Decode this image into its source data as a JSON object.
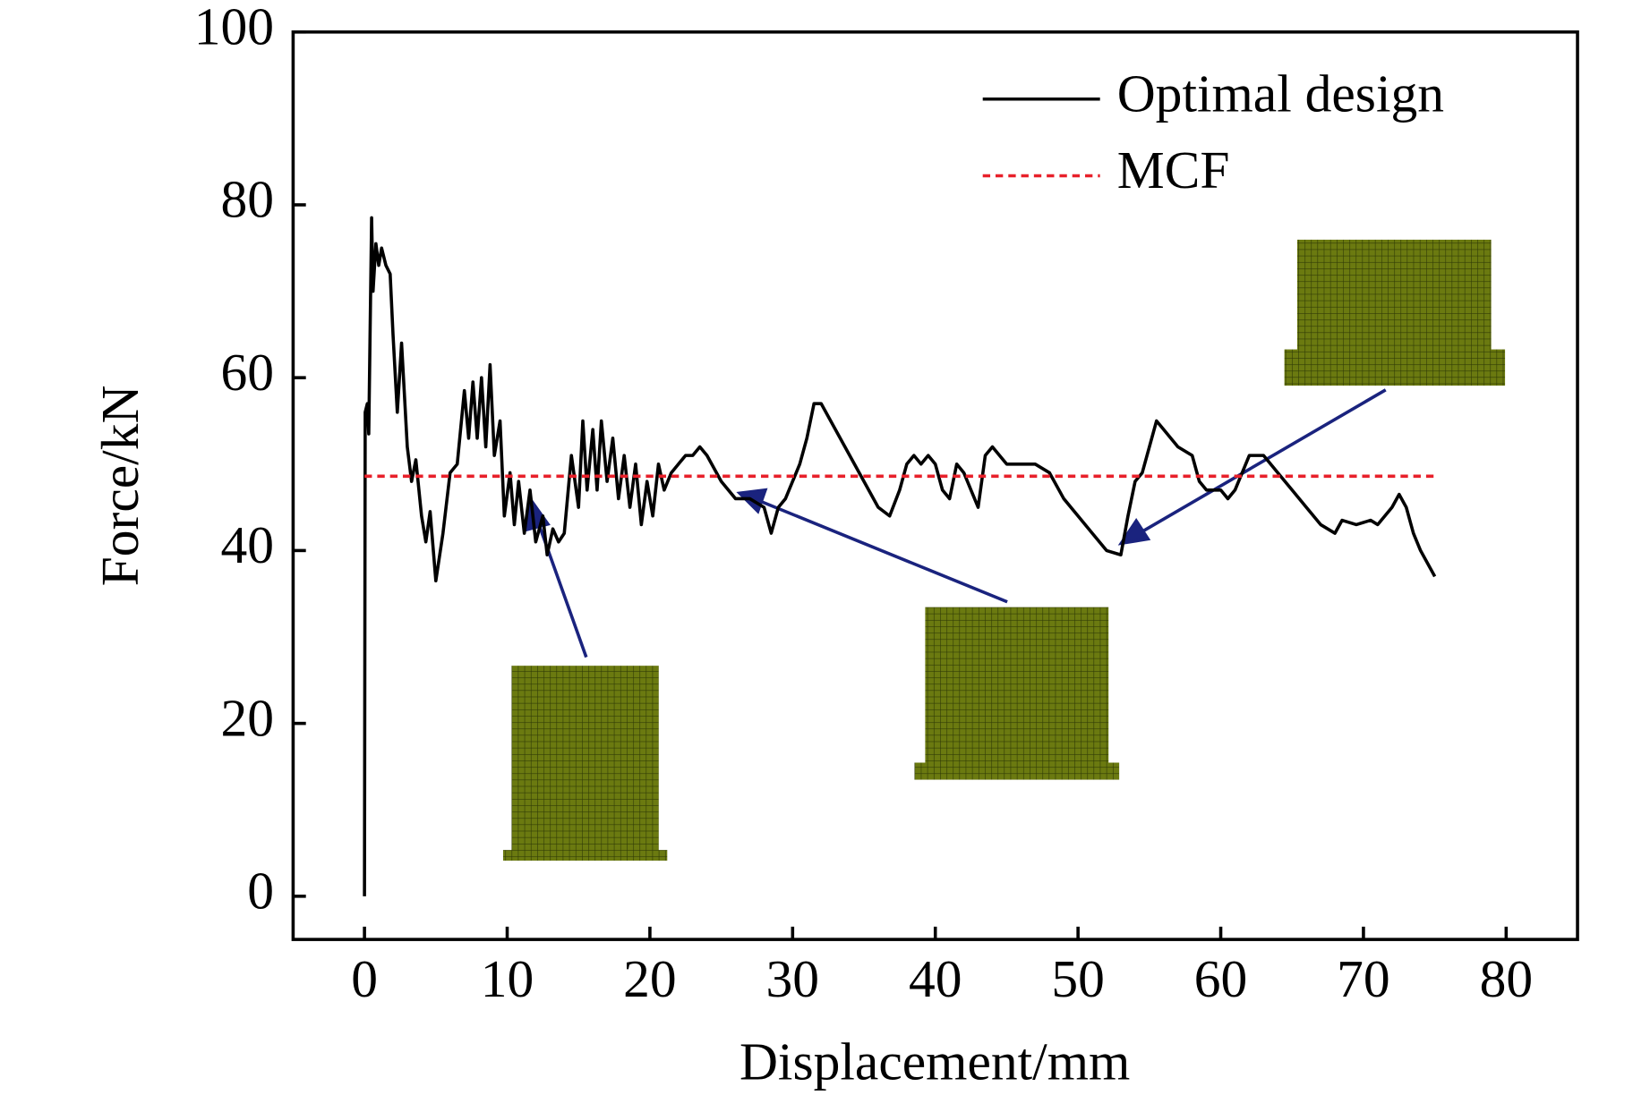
{
  "chart_data": {
    "type": "line",
    "xlabel": "Displacement/mm",
    "ylabel": "Force/kN",
    "xlim": [
      -5,
      85
    ],
    "ylim": [
      -5,
      100
    ],
    "xticks": [
      0,
      10,
      20,
      30,
      40,
      50,
      60,
      70,
      80
    ],
    "yticks": [
      0,
      20,
      40,
      60,
      80,
      100
    ],
    "legend": "upper right",
    "series": [
      {
        "name": "Optimal design",
        "color": "#000000",
        "style": "solid",
        "x": [
          0,
          0.05,
          0.2,
          0.3,
          0.5,
          0.6,
          0.8,
          1,
          1.2,
          1.5,
          1.8,
          2,
          2.3,
          2.6,
          3,
          3.3,
          3.6,
          4,
          4.3,
          4.6,
          5,
          5.5,
          6,
          6.5,
          7,
          7.3,
          7.6,
          7.9,
          8.2,
          8.5,
          8.8,
          9.1,
          9.5,
          9.8,
          10.2,
          10.5,
          10.8,
          11.2,
          11.6,
          12,
          12.5,
          12.8,
          13.2,
          13.6,
          14,
          14.5,
          15,
          15.3,
          15.6,
          16,
          16.3,
          16.6,
          17,
          17.4,
          17.8,
          18.2,
          18.6,
          19,
          19.4,
          19.8,
          20.2,
          20.6,
          21,
          21.5,
          22,
          22.5,
          23,
          23.5,
          24,
          25,
          26,
          27,
          28,
          28.5,
          29,
          29.5,
          30,
          30.5,
          31,
          31.5,
          32,
          33,
          34,
          35,
          36,
          36.8,
          37.5,
          38,
          38.5,
          39,
          39.5,
          40,
          40.5,
          41,
          41.5,
          42,
          42.5,
          43,
          43.5,
          44,
          45,
          46,
          47,
          48,
          49,
          50,
          51,
          52,
          53,
          53.5,
          54,
          54.5,
          55,
          55.5,
          56,
          57,
          58,
          58.5,
          59,
          60,
          60.5,
          61,
          62,
          63,
          64,
          65,
          66,
          67,
          68,
          68.5,
          69.5,
          70.5,
          71,
          72,
          72.5,
          73,
          73.5,
          74,
          75
        ],
        "values": [
          0,
          56,
          57,
          53.5,
          78.5,
          70,
          75.5,
          73,
          75,
          73,
          72,
          65,
          56,
          64,
          52,
          48,
          50.5,
          44,
          41,
          44.5,
          36.5,
          42,
          49,
          50,
          58.5,
          53,
          59.5,
          53,
          60,
          52,
          61.5,
          51,
          55,
          44,
          49,
          43,
          48,
          42,
          47,
          41,
          44,
          39.5,
          42.5,
          41,
          42,
          51,
          45,
          55,
          47,
          54,
          47,
          55,
          48,
          53,
          46,
          51,
          45,
          50,
          43,
          48,
          44,
          50,
          47,
          49,
          50,
          51,
          51,
          52,
          51,
          48,
          46,
          46,
          45,
          42,
          45,
          46,
          48,
          50,
          53,
          57,
          57,
          54,
          51,
          48,
          45,
          44,
          47,
          50,
          51,
          50,
          51,
          50,
          47,
          46,
          50,
          49,
          47,
          45,
          51,
          52,
          50,
          50,
          50,
          49,
          46,
          44,
          42,
          40,
          39.5,
          44,
          48,
          49,
          52,
          55,
          54,
          52,
          51,
          48,
          47,
          47,
          46,
          47,
          51,
          51,
          49,
          47,
          45,
          43,
          42,
          43.5,
          43,
          43.5,
          43,
          45,
          46.5,
          45,
          42,
          40,
          37
        ]
      },
      {
        "name": "MCF",
        "color": "#e8202a",
        "style": "dotted",
        "x": [
          0,
          75
        ],
        "values": [
          48.6,
          48.6
        ]
      }
    ]
  }
}
